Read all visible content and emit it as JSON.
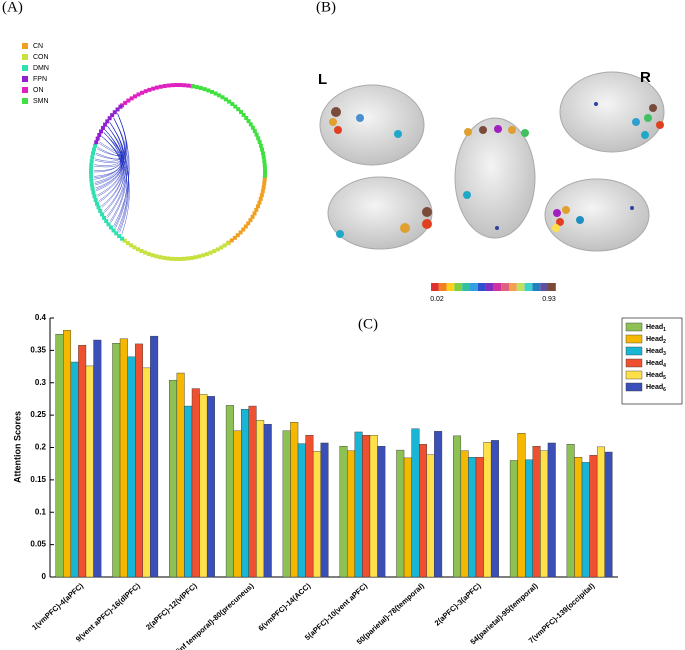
{
  "panel_labels": {
    "a": "(A)",
    "b": "(B)",
    "c": "(C)"
  },
  "network_legend": [
    {
      "name": "CN",
      "color": "#f0a020"
    },
    {
      "name": "CON",
      "color": "#c8e040"
    },
    {
      "name": "DMN",
      "color": "#30e0b0"
    },
    {
      "name": "FPN",
      "color": "#9020d0"
    },
    {
      "name": "ON",
      "color": "#e020c0"
    },
    {
      "name": "SMN",
      "color": "#40e040"
    }
  ],
  "brain": {
    "left": "L",
    "right": "R",
    "colorbar": {
      "min": 0.02,
      "max": 0.93
    }
  },
  "chart_data": {
    "type": "bar",
    "ylabel": "Attention Scores",
    "categories": [
      "1(vmPFC)-4(aPFC)",
      "9(vent aPFC)-16(dlPFC)",
      "2(aPFC)-12(vlPFC)",
      "63(inf temporal)-80(precuneus)",
      "6(vmPFC)-14(ACC)",
      "5(aPFC)-10(vent aPFC)",
      "50(parietal)-78(temporal)",
      "2(aPFC)-3(aPFC)",
      "54(parietal)-95(temporal)",
      "7(vmPFC)-139(occipital)"
    ],
    "series": [
      {
        "name": "Head1",
        "color": "#8dc153",
        "values": [
          0.375,
          0.361,
          0.304,
          0.265,
          0.226,
          0.202,
          0.196,
          0.218,
          0.18,
          0.205
        ]
      },
      {
        "name": "Head2",
        "color": "#f5b800",
        "values": [
          0.381,
          0.368,
          0.315,
          0.226,
          0.239,
          0.195,
          0.184,
          0.195,
          0.222,
          0.185
        ]
      },
      {
        "name": "Head3",
        "color": "#18b6d4",
        "values": [
          0.332,
          0.34,
          0.264,
          0.259,
          0.206,
          0.224,
          0.229,
          0.185,
          0.181,
          0.177
        ]
      },
      {
        "name": "Head4",
        "color": "#ee5030",
        "values": [
          0.358,
          0.36,
          0.291,
          0.264,
          0.219,
          0.219,
          0.205,
          0.185,
          0.202,
          0.188
        ]
      },
      {
        "name": "Head5",
        "color": "#ffe04a",
        "values": [
          0.326,
          0.323,
          0.282,
          0.242,
          0.194,
          0.219,
          0.189,
          0.208,
          0.195,
          0.201
        ]
      },
      {
        "name": "Head6",
        "color": "#3a4fb8",
        "values": [
          0.366,
          0.372,
          0.279,
          0.236,
          0.207,
          0.202,
          0.225,
          0.211,
          0.207,
          0.193
        ]
      }
    ],
    "ylim": [
      0,
      0.4
    ],
    "yticks": [
      0,
      0.05,
      0.1,
      0.15,
      0.2,
      0.25,
      0.3,
      0.35,
      0.4
    ],
    "legend": "upper right"
  }
}
